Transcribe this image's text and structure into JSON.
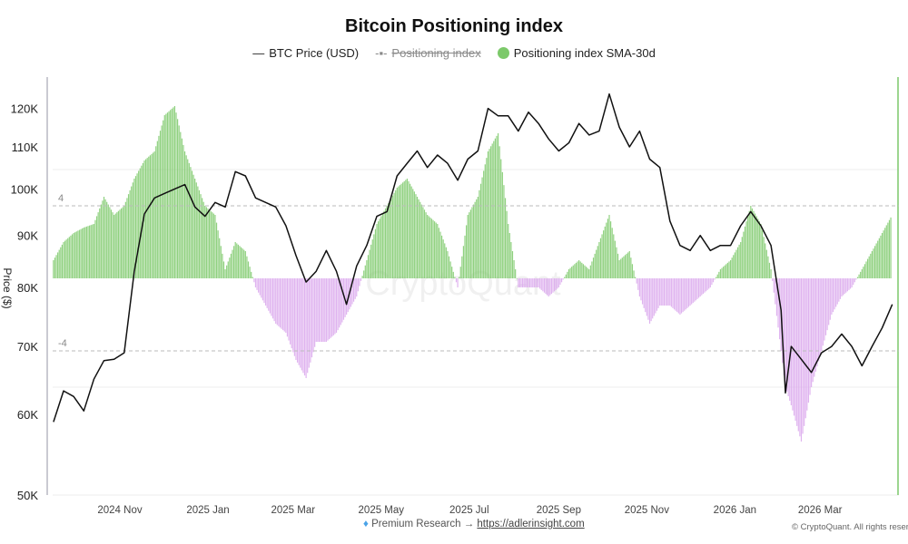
{
  "chart_data": {
    "type": "line+bar",
    "title": "Bitcoin Positioning index",
    "ylabel": "Price ($)",
    "y_scale": "log",
    "ylim": [
      50000,
      125000
    ],
    "y_ticks": [
      "50K",
      "60K",
      "70K",
      "80K",
      "90K",
      "100K",
      "110K",
      "120K"
    ],
    "y_tick_values": [
      50000,
      60000,
      70000,
      80000,
      90000,
      100000,
      110000,
      120000
    ],
    "x_ticks": [
      "2024 Nov",
      "2025 Jan",
      "2025 Mar",
      "2025 May",
      "2025 Jul",
      "2025 Sep",
      "2025 Nov",
      "2026 Jan",
      "2026 Mar"
    ],
    "x_tick_dates": [
      "2024-11-01",
      "2025-01-01",
      "2025-03-01",
      "2025-05-01",
      "2025-07-01",
      "2025-09-01",
      "2025-11-01",
      "2026-01-01",
      "2026-03-01"
    ],
    "index_reference_lines": [
      {
        "label": "4",
        "value": 4
      },
      {
        "label": "-4",
        "value": -4
      }
    ],
    "legend_position": "top",
    "colors": {
      "price": "#111111",
      "positive": "#7cc96a",
      "negative": "#d9a6ec",
      "hidden_series": "#8a8a8a"
    },
    "series": [
      {
        "name": "BTC Price (USD)",
        "type": "line",
        "visible": true,
        "x": [
          "2024-09-16",
          "2024-09-23",
          "2024-09-30",
          "2024-10-07",
          "2024-10-14",
          "2024-10-21",
          "2024-10-28",
          "2024-11-04",
          "2024-11-11",
          "2024-11-18",
          "2024-11-25",
          "2024-12-02",
          "2024-12-09",
          "2024-12-16",
          "2024-12-23",
          "2024-12-30",
          "2025-01-06",
          "2025-01-13",
          "2025-01-20",
          "2025-01-27",
          "2025-02-03",
          "2025-02-10",
          "2025-02-17",
          "2025-02-24",
          "2025-03-03",
          "2025-03-10",
          "2025-03-17",
          "2025-03-24",
          "2025-03-31",
          "2025-04-07",
          "2025-04-14",
          "2025-04-21",
          "2025-04-28",
          "2025-05-05",
          "2025-05-12",
          "2025-05-19",
          "2025-05-26",
          "2025-06-02",
          "2025-06-09",
          "2025-06-16",
          "2025-06-23",
          "2025-06-30",
          "2025-07-07",
          "2025-07-14",
          "2025-07-21",
          "2025-07-28",
          "2025-08-04",
          "2025-08-11",
          "2025-08-18",
          "2025-08-25",
          "2025-09-01",
          "2025-09-08",
          "2025-09-15",
          "2025-09-22",
          "2025-09-29",
          "2025-10-06",
          "2025-10-13",
          "2025-10-20",
          "2025-10-27",
          "2025-11-03",
          "2025-11-10",
          "2025-11-17",
          "2025-11-24",
          "2025-12-01",
          "2025-12-08",
          "2025-12-15",
          "2025-12-22",
          "2025-12-29",
          "2026-01-05",
          "2026-01-12",
          "2026-01-19",
          "2026-01-26",
          "2026-02-02",
          "2026-02-05",
          "2026-02-09",
          "2026-02-16",
          "2026-02-23",
          "2026-03-02",
          "2026-03-09",
          "2026-03-16",
          "2026-03-23",
          "2026-03-30",
          "2026-04-06",
          "2026-04-13",
          "2026-04-20"
        ],
        "values": [
          59000,
          63300,
          62500,
          60500,
          65000,
          67800,
          68000,
          69000,
          83000,
          94500,
          98000,
          99000,
          100000,
          101000,
          96000,
          94000,
          97000,
          96000,
          104000,
          103000,
          98000,
          97000,
          96000,
          92000,
          86000,
          81000,
          83000,
          87000,
          83000,
          77000,
          84000,
          88000,
          94000,
          95000,
          103000,
          106000,
          109000,
          105000,
          108000,
          106000,
          102000,
          107000,
          109000,
          120000,
          118000,
          118000,
          114000,
          119000,
          116000,
          112000,
          109000,
          111000,
          116000,
          113000,
          114000,
          124000,
          115000,
          110000,
          114000,
          107000,
          105000,
          93000,
          88000,
          87000,
          90000,
          87000,
          88000,
          88000,
          92000,
          95000,
          92000,
          88000,
          76000,
          63000,
          70000,
          68000,
          66000,
          69000,
          70000,
          72000,
          70000,
          67000,
          70000,
          73000,
          77000
        ]
      },
      {
        "name": "Positioning index",
        "type": "line",
        "visible": false
      },
      {
        "name": "Positioning index SMA-30d",
        "type": "bar",
        "visible": true,
        "x": [
          "2024-09-16",
          "2024-09-23",
          "2024-09-30",
          "2024-10-07",
          "2024-10-14",
          "2024-10-21",
          "2024-10-28",
          "2024-11-04",
          "2024-11-11",
          "2024-11-18",
          "2024-11-25",
          "2024-12-02",
          "2024-12-09",
          "2024-12-16",
          "2024-12-23",
          "2024-12-30",
          "2025-01-06",
          "2025-01-13",
          "2025-01-20",
          "2025-01-27",
          "2025-02-03",
          "2025-02-10",
          "2025-02-17",
          "2025-02-24",
          "2025-03-03",
          "2025-03-10",
          "2025-03-17",
          "2025-03-24",
          "2025-03-31",
          "2025-04-07",
          "2025-04-14",
          "2025-04-21",
          "2025-04-28",
          "2025-05-05",
          "2025-05-12",
          "2025-05-19",
          "2025-05-26",
          "2025-06-02",
          "2025-06-09",
          "2025-06-16",
          "2025-06-23",
          "2025-06-30",
          "2025-07-07",
          "2025-07-14",
          "2025-07-21",
          "2025-07-28",
          "2025-08-04",
          "2025-08-11",
          "2025-08-18",
          "2025-08-25",
          "2025-09-01",
          "2025-09-08",
          "2025-09-15",
          "2025-09-22",
          "2025-09-29",
          "2025-10-06",
          "2025-10-13",
          "2025-10-20",
          "2025-10-27",
          "2025-11-03",
          "2025-11-10",
          "2025-11-17",
          "2025-11-24",
          "2025-12-01",
          "2025-12-08",
          "2025-12-15",
          "2025-12-22",
          "2025-12-29",
          "2026-01-05",
          "2026-01-12",
          "2026-01-19",
          "2026-01-26",
          "2026-02-02",
          "2026-02-05",
          "2026-02-09",
          "2026-02-16",
          "2026-02-23",
          "2026-03-02",
          "2026-03-09",
          "2026-03-16",
          "2026-03-23",
          "2026-03-30",
          "2026-04-06",
          "2026-04-13",
          "2026-04-20"
        ],
        "values": [
          1,
          2,
          2.5,
          2.8,
          3,
          4.5,
          3.5,
          4,
          5.5,
          6.5,
          7,
          9,
          9.5,
          7,
          5.5,
          4,
          3.5,
          0.5,
          2,
          1.5,
          -0.5,
          -1.5,
          -2.5,
          -3,
          -4.5,
          -5.5,
          -3.5,
          -3.5,
          -3,
          -2,
          -1,
          1,
          3,
          4,
          5,
          5.5,
          4.5,
          3.5,
          3,
          1.5,
          -0.5,
          3.5,
          4.5,
          7,
          8,
          3,
          -0.5,
          -0.5,
          -0.5,
          -1,
          -0.5,
          0.5,
          1,
          0.5,
          2,
          3.5,
          1,
          1.5,
          -1,
          -2.5,
          -1.5,
          -1.5,
          -2,
          -1.5,
          -1,
          -0.5,
          0.5,
          1,
          2,
          4,
          3,
          0.5,
          -4,
          -6,
          -7,
          -9,
          -6,
          -4,
          -2,
          -1,
          -0.5,
          0.5,
          1.5,
          2.5,
          3.5
        ]
      }
    ]
  },
  "legend": {
    "price": "BTC Price (USD)",
    "index": "Positioning index",
    "sma": "Positioning index SMA-30d"
  },
  "watermark": "CryptoQuant",
  "footer": {
    "text": "Premium Research →",
    "link": "https://adlerinsight.com",
    "copyright": "© CryptoQuant. All rights reserved."
  }
}
